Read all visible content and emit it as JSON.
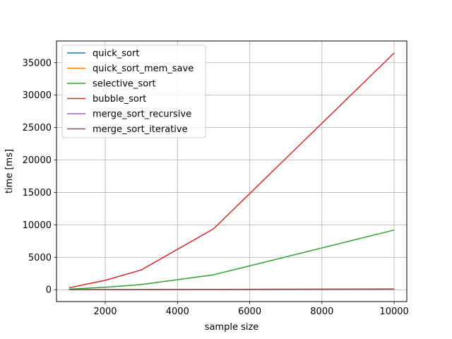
{
  "chart_data": {
    "type": "line",
    "title": "",
    "xlabel": "sample size",
    "ylabel": "time [ms]",
    "x": [
      1000,
      2000,
      3000,
      5000,
      10000
    ],
    "xlim": [
      650,
      10350
    ],
    "ylim": [
      -1830,
      38350
    ],
    "xticks": [
      2000,
      4000,
      6000,
      8000,
      10000
    ],
    "yticks": [
      0,
      5000,
      10000,
      15000,
      20000,
      25000,
      30000,
      35000
    ],
    "grid": true,
    "legend_position": "top-left",
    "series": [
      {
        "name": "quick_sort",
        "color": "#1f77b4",
        "values": [
          3,
          6,
          10,
          18,
          40
        ]
      },
      {
        "name": "quick_sort_mem_save",
        "color": "#ff7f0e",
        "values": [
          4,
          8,
          12,
          22,
          48
        ]
      },
      {
        "name": "selective_sort",
        "color": "#2ca02c",
        "values": [
          90,
          370,
          800,
          2300,
          9200
        ]
      },
      {
        "name": "bubble_sort",
        "color": "#d62728",
        "values": [
          300,
          1450,
          3050,
          9400,
          36500
        ]
      },
      {
        "name": "merge_sort_recursive",
        "color": "#9467bd",
        "values": [
          6,
          12,
          20,
          35,
          75
        ]
      },
      {
        "name": "merge_sort_iterative",
        "color": "#8c564b",
        "values": [
          8,
          18,
          30,
          55,
          120
        ]
      }
    ]
  }
}
